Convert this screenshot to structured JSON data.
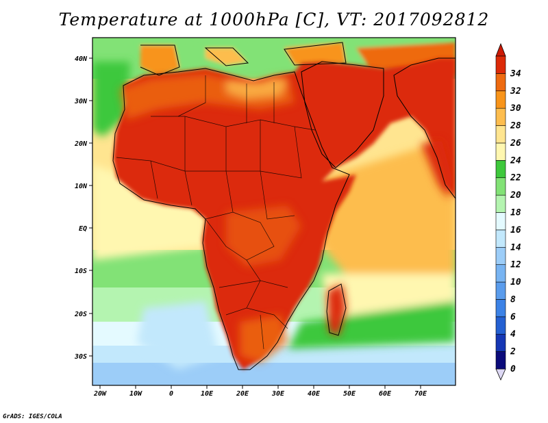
{
  "title": "Temperature at 1000hPa [C], VT: 2017092812",
  "credit": "GrADS: IGES/COLA",
  "axes": {
    "lon_ticks": [
      "20W",
      "10W",
      "0",
      "10E",
      "20E",
      "30E",
      "40E",
      "50E",
      "60E",
      "70E"
    ],
    "lat_ticks": [
      "40N",
      "30N",
      "20N",
      "10N",
      "EQ",
      "10S",
      "20S",
      "30S"
    ]
  },
  "colorbar": {
    "levels": [
      "0",
      "2",
      "4",
      "6",
      "8",
      "10",
      "12",
      "14",
      "16",
      "18",
      "20",
      "22",
      "24",
      "26",
      "28",
      "30",
      "32",
      "34"
    ],
    "colors": [
      "#0b0b7a",
      "#1537b4",
      "#2460d2",
      "#3c82e6",
      "#5a9cec",
      "#78b4f2",
      "#9ccdf8",
      "#c2e8fc",
      "#e4faff",
      "#b4f4b0",
      "#82e276",
      "#3ec83c",
      "#fff7b0",
      "#ffe590",
      "#fdbd4e",
      "#f8941a",
      "#ee6a10",
      "#dc2a08"
    ]
  },
  "legend": {
    "temperature_colors": {
      "hot": "#dc2a08",
      "warm": "#ee6a10",
      "mild": "#f8941a",
      "tan": "#fdbd4e",
      "pale": "#ffe590",
      "cream": "#fff7b0",
      "green": "#3ec83c",
      "lightgreen": "#82e276",
      "mint": "#b4f4b0",
      "ice": "#e4faff",
      "lightblue": "#c2e8fc",
      "blue": "#9ccdf8",
      "midblue": "#78b4f2"
    }
  }
}
